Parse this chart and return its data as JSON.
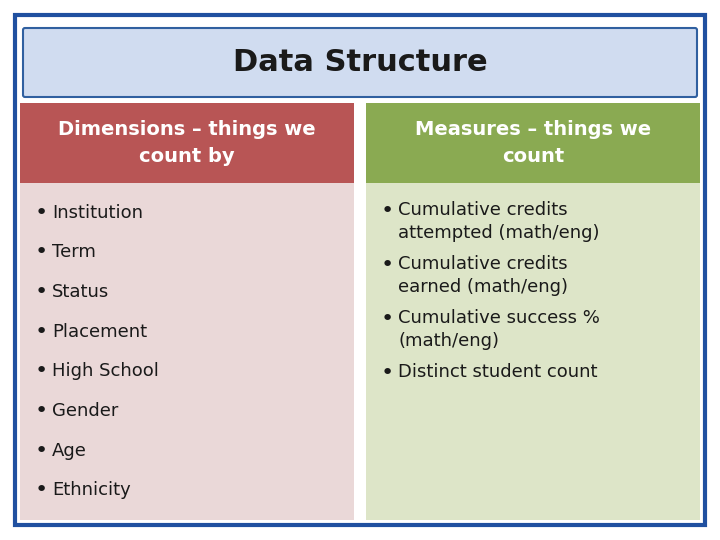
{
  "title": "Data Structure",
  "title_bg_top": "#d0dcf0",
  "title_bg_bot": "#a0b8e0",
  "title_border": "#3060a0",
  "background": "#ffffff",
  "outer_border": "#2050a0",
  "left_header": "Dimensions – things we\ncount by",
  "left_header_bg": "#b85555",
  "left_body_bg": "#ead8d8",
  "left_items": [
    "Institution",
    "Term",
    "Status",
    "Placement",
    "High School",
    "Gender",
    "Age",
    "Ethnicity"
  ],
  "right_header": "Measures – things we\ncount",
  "right_header_bg": "#8aaa52",
  "right_body_bg": "#dde5c8",
  "right_items": [
    "Cumulative credits\nattempted (math/eng)",
    "Cumulative credits\nearned (math/eng)",
    "Cumulative success %\n(math/eng)",
    "Distinct student count"
  ],
  "header_text_color": "#ffffff",
  "body_text_color": "#1a1a1a",
  "title_text_color": "#1a1a1a",
  "title_fontsize": 22,
  "header_fontsize": 14,
  "body_fontsize": 13
}
